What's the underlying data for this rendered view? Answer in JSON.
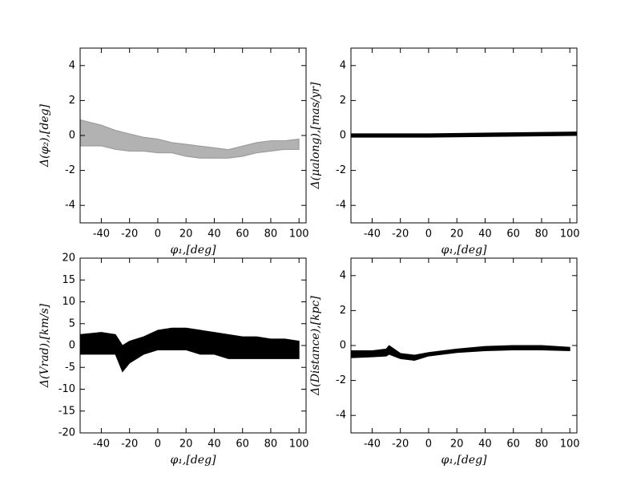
{
  "chart_data": [
    {
      "type": "band",
      "xlabel": "φ₁,[deg]",
      "ylabel": "Δ(φ₂),[deg]",
      "color": "#555555",
      "opacity": 0.45,
      "x": [
        -55,
        -40,
        -30,
        -20,
        -10,
        0,
        10,
        20,
        30,
        40,
        50,
        60,
        70,
        80,
        90,
        100
      ],
      "lower": [
        -0.6,
        -0.6,
        -0.8,
        -0.9,
        -0.9,
        -1.0,
        -1.0,
        -1.2,
        -1.3,
        -1.3,
        -1.3,
        -1.2,
        -1.0,
        -0.9,
        -0.8,
        -0.8
      ],
      "upper": [
        0.9,
        0.6,
        0.3,
        0.1,
        -0.1,
        -0.2,
        -0.4,
        -0.5,
        -0.6,
        -0.7,
        -0.8,
        -0.6,
        -0.4,
        -0.3,
        -0.3,
        -0.2
      ],
      "xlim": [
        -55,
        105
      ],
      "xticks": [
        -40,
        -20,
        0,
        20,
        40,
        60,
        80,
        100
      ],
      "ylim": [
        -5,
        5
      ],
      "yticks": [
        -4,
        -2,
        0,
        2,
        4
      ]
    },
    {
      "type": "band",
      "xlabel": "φ₁,[deg]",
      "ylabel": "Δ(μalong),[mas/yr]",
      "color": "#000000",
      "opacity": 1,
      "x": [
        -55,
        0,
        50,
        105
      ],
      "lower": [
        -0.1,
        -0.1,
        -0.05,
        0.0
      ],
      "upper": [
        0.1,
        0.1,
        0.15,
        0.2
      ],
      "xlim": [
        -55,
        105
      ],
      "xticks": [
        -40,
        -20,
        0,
        20,
        40,
        60,
        80,
        100
      ],
      "ylim": [
        -5,
        5
      ],
      "yticks": [
        -4,
        -2,
        0,
        2,
        4
      ]
    },
    {
      "type": "band",
      "xlabel": "φ₁,[deg]",
      "ylabel": "Δ(Vrad),[km/s]",
      "color": "#000000",
      "opacity": 1,
      "x": [
        -55,
        -40,
        -30,
        -25,
        -20,
        -10,
        0,
        10,
        20,
        30,
        40,
        50,
        60,
        70,
        80,
        90,
        100
      ],
      "lower": [
        -2,
        -2,
        -2,
        -6,
        -4,
        -2,
        -1,
        -1,
        -1,
        -2,
        -2,
        -3,
        -3,
        -3,
        -3,
        -3,
        -3
      ],
      "upper": [
        2.5,
        3,
        2.5,
        0,
        1,
        2,
        3.5,
        4,
        4,
        3.5,
        3,
        2.5,
        2,
        2,
        1.5,
        1.5,
        1
      ],
      "xlim": [
        -55,
        105
      ],
      "xticks": [
        -40,
        -20,
        0,
        20,
        40,
        60,
        80,
        100
      ],
      "ylim": [
        -20,
        20
      ],
      "yticks": [
        -20,
        -15,
        -10,
        -5,
        0,
        5,
        10,
        15,
        20
      ]
    },
    {
      "type": "band",
      "xlabel": "φ₁,[deg]",
      "ylabel": "Δ(Distance),[kpc]",
      "color": "#000000",
      "opacity": 1,
      "x": [
        -55,
        -40,
        -30,
        -28,
        -20,
        -10,
        0,
        20,
        40,
        60,
        80,
        100
      ],
      "lower": [
        -0.7,
        -0.65,
        -0.6,
        -0.5,
        -0.75,
        -0.85,
        -0.6,
        -0.4,
        -0.3,
        -0.25,
        -0.25,
        -0.3
      ],
      "upper": [
        -0.3,
        -0.3,
        -0.2,
        0.0,
        -0.45,
        -0.55,
        -0.4,
        -0.2,
        -0.05,
        0.0,
        0.0,
        -0.1
      ],
      "xlim": [
        -55,
        105
      ],
      "xticks": [
        -40,
        -20,
        0,
        20,
        40,
        60,
        80,
        100
      ],
      "ylim": [
        -5,
        5
      ],
      "yticks": [
        -4,
        -2,
        0,
        2,
        4
      ]
    }
  ]
}
